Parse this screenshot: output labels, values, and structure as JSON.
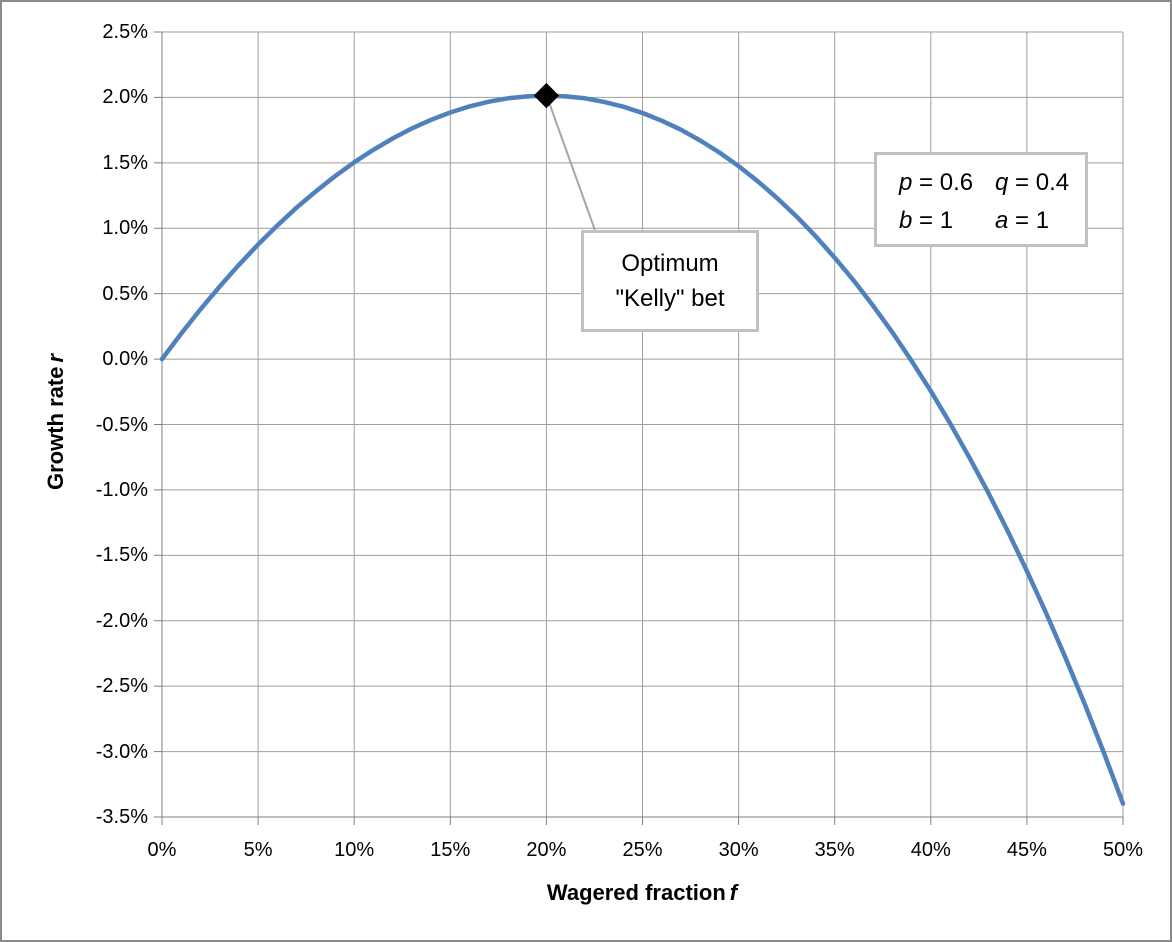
{
  "colors": {
    "background": "#ffffff",
    "outer_border": "#8a8a8a",
    "gridline": "#9e9e9e",
    "axis": "#7f7f7f",
    "curve": "#4F81BD",
    "marker": "#000000",
    "box_border": "#c0c0c0",
    "leader_line": "#a6a6a6",
    "text": "#000000"
  },
  "chart_data": {
    "type": "line",
    "title": "",
    "xlabel": {
      "text": "Wagered fraction",
      "symbol": "f"
    },
    "ylabel": {
      "text": "Growth rate",
      "symbol": "r"
    },
    "x_ticks": [
      "0%",
      "5%",
      "10%",
      "15%",
      "20%",
      "25%",
      "30%",
      "35%",
      "40%",
      "45%",
      "50%"
    ],
    "y_ticks": [
      "2.5%",
      "2.0%",
      "1.5%",
      "1.0%",
      "0.5%",
      "0.0%",
      "-0.5%",
      "-1.0%",
      "-1.5%",
      "-2.0%",
      "-2.5%",
      "-3.0%",
      "-3.5%"
    ],
    "xlim_pct": [
      0,
      50
    ],
    "ylim_pct": [
      -3.5,
      2.5
    ],
    "grid": true,
    "legend_position": "none",
    "series": [
      {
        "name": "kelly-growth-rate-curve",
        "color": "#4F81BD",
        "x_pct": [
          0,
          1,
          2,
          3,
          4,
          5,
          6,
          7,
          8,
          9,
          10,
          11,
          12,
          13,
          14,
          15,
          16,
          17,
          18,
          19,
          20,
          21,
          22,
          23,
          24,
          25,
          26,
          27,
          28,
          29,
          30,
          31,
          32,
          33,
          34,
          35,
          36,
          37,
          38,
          39,
          40,
          41,
          42,
          43,
          44,
          45,
          46,
          47,
          48,
          49,
          50
        ],
        "y_pct": [
          0.0,
          0.195,
          0.38,
          0.555,
          0.72,
          0.876,
          1.021,
          1.157,
          1.282,
          1.398,
          1.504,
          1.6,
          1.686,
          1.763,
          1.829,
          1.885,
          1.931,
          1.967,
          1.993,
          2.008,
          2.014,
          2.008,
          1.993,
          1.966,
          1.929,
          1.881,
          1.822,
          1.753,
          1.671,
          1.579,
          1.475,
          1.359,
          1.231,
          1.092,
          0.94,
          0.775,
          0.598,
          0.407,
          0.204,
          -0.014,
          -0.245,
          -0.49,
          -0.75,
          -1.024,
          -1.314,
          -1.62,
          -1.941,
          -2.279,
          -2.635,
          -3.007,
          -3.398
        ]
      }
    ],
    "optimum_marker": {
      "x_pct": 20,
      "y_pct": 2.014,
      "shape": "diamond",
      "color": "#000000"
    },
    "annotation": {
      "line1": "Optimum",
      "line2": "\"Kelly\" bet"
    },
    "parameters": {
      "rows": [
        [
          {
            "sym": "p",
            "val": "= 0.6"
          },
          {
            "sym": "q",
            "val": "= 0.4"
          }
        ],
        [
          {
            "sym": "b",
            "val": "= 1"
          },
          {
            "sym": "a",
            "val": "= 1"
          }
        ]
      ]
    }
  }
}
